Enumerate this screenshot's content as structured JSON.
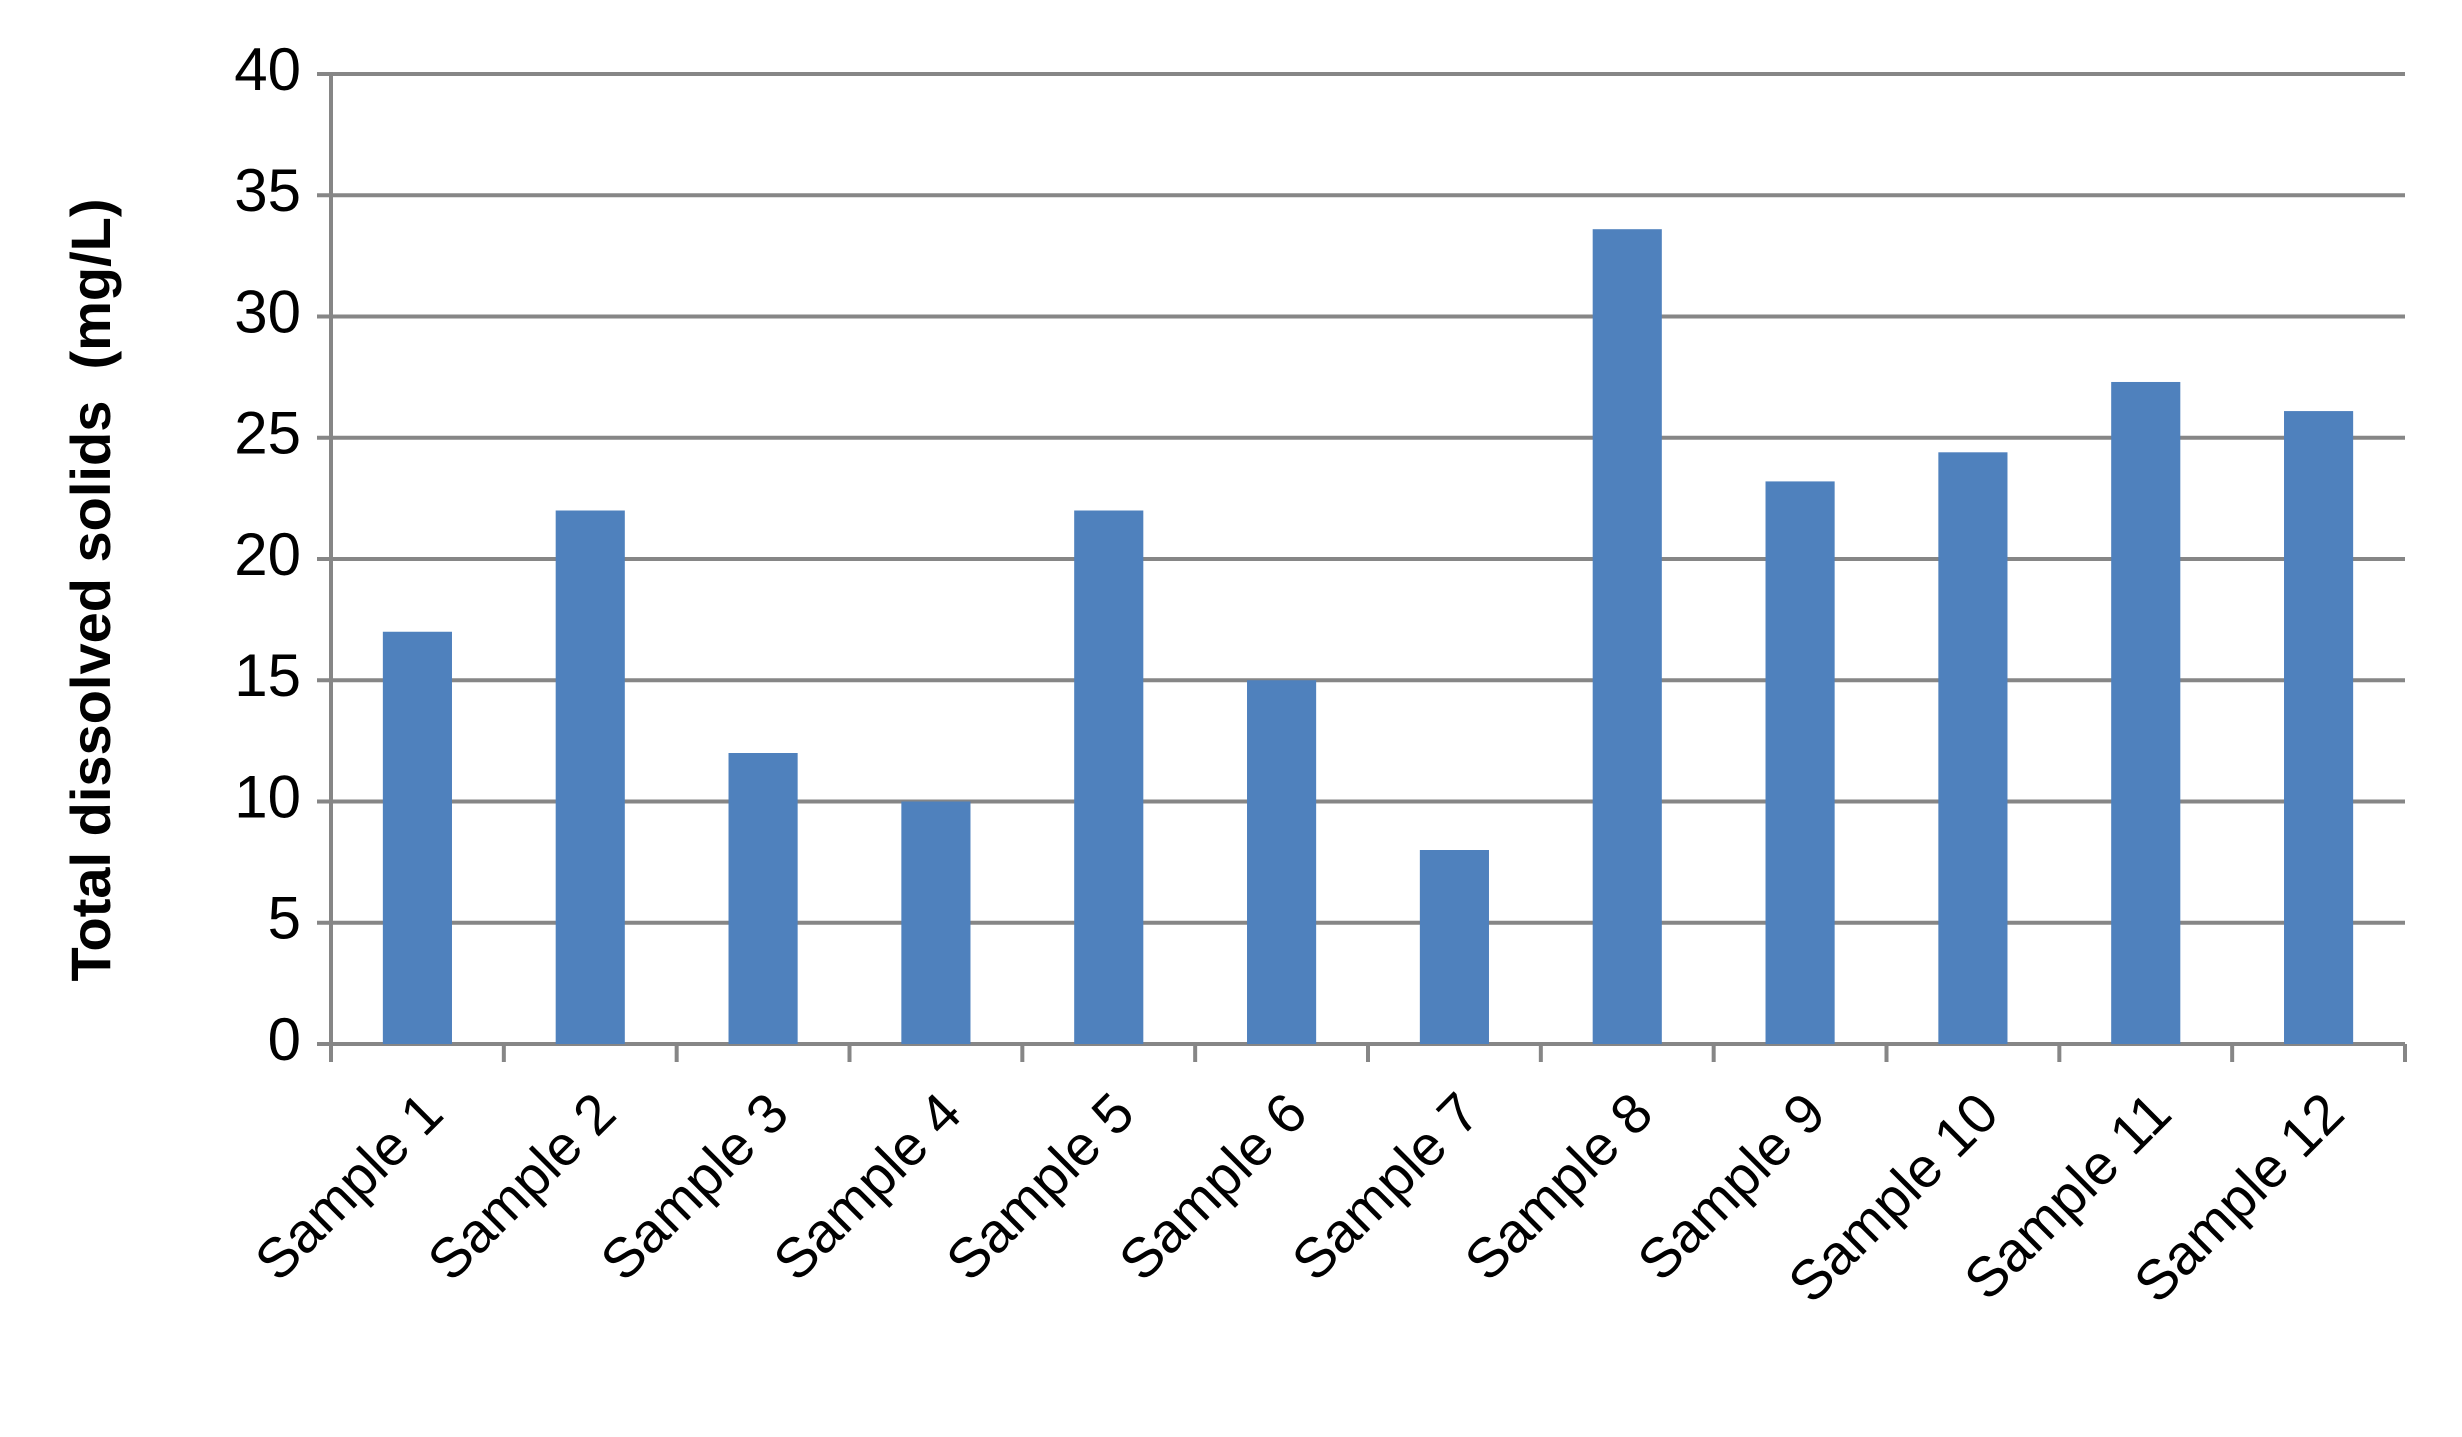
{
  "chart_data": {
    "type": "bar",
    "y_label": "Total dissolved solids  (mg/L)",
    "categories": [
      "Sample 1",
      "Sample 2",
      "Sample 3",
      "Sample 4",
      "Sample 5",
      "Sample 6",
      "Sample 7",
      "Sample 8",
      "Sample 9",
      "Sample 10",
      "Sample 11",
      "Sample 12"
    ],
    "values": [
      17,
      22,
      12,
      10,
      22,
      15,
      8,
      33.6,
      23.2,
      24.4,
      27.3,
      26.1
    ],
    "color": "#4f81bd",
    "ylim": [
      0,
      40
    ],
    "yticks": [
      0,
      5,
      10,
      15,
      20,
      25,
      30,
      35,
      40
    ],
    "grid": true
  }
}
